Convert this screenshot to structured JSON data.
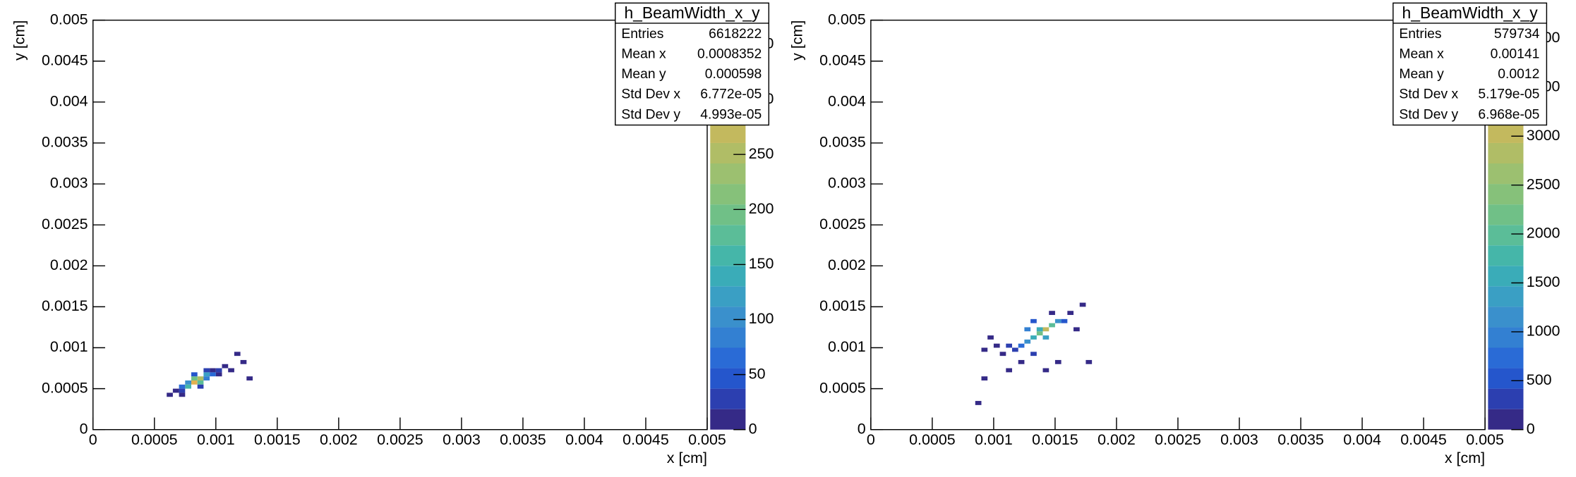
{
  "chart_data": [
    {
      "type": "heatmap",
      "xlabel": "x [cm]",
      "ylabel": "y [cm]",
      "xlim": [
        0,
        0.005
      ],
      "ylim": [
        0,
        0.005
      ],
      "zlim": [
        0,
        372
      ],
      "xbin": 5e-05,
      "ybin": 5e-05,
      "xticks": [
        0,
        0.0005,
        0.001,
        0.0015,
        0.002,
        0.0025,
        0.003,
        0.0035,
        0.004,
        0.0045,
        0.005
      ],
      "yticks": [
        0,
        0.0005,
        0.001,
        0.0015,
        0.002,
        0.0025,
        0.003,
        0.0035,
        0.004,
        0.0045,
        0.005
      ],
      "zticks": [
        0,
        50,
        100,
        150,
        200,
        250,
        300,
        350
      ],
      "palette": [
        "#352a87",
        "#2c3fb0",
        "#2556cc",
        "#2a6bd6",
        "#3380d2",
        "#3a90cc",
        "#3a9fc4",
        "#3aacb8",
        "#45b6a9",
        "#5bbd98",
        "#70c087",
        "#86c17a",
        "#9cc070",
        "#b0bd66",
        "#c3b95e",
        "#d4b557",
        "#e2b250",
        "#eeb74a",
        "#f5c93e",
        "#f9e02b"
      ],
      "cells": {
        "x": [
          0.0008,
          0.00085,
          0.00075,
          0.0009,
          0.0008,
          0.00085,
          0.0007,
          0.00095,
          0.0009,
          0.00075,
          0.0007,
          0.001,
          0.00065,
          0.001,
          0.00095,
          0.0006,
          0.00115,
          0.0012,
          0.00125,
          0.00105,
          0.0011,
          0.0007,
          0.00085,
          0.0008,
          0.0009
        ],
        "y": [
          0.00055,
          0.0006,
          0.0005,
          0.00065,
          0.0006,
          0.00055,
          0.0005,
          0.00065,
          0.0006,
          0.00055,
          0.00045,
          0.0007,
          0.00045,
          0.00065,
          0.0007,
          0.0004,
          0.0009,
          0.0008,
          0.0006,
          0.00075,
          0.0007,
          0.0004,
          0.0005,
          0.00065,
          0.0007
        ],
        "z": [
          300,
          250,
          150,
          120,
          200,
          180,
          60,
          60,
          90,
          110,
          20,
          20,
          5,
          10,
          15,
          1,
          1,
          1,
          1,
          1,
          1,
          2,
          30,
          40,
          25
        ]
      },
      "stats": {
        "title": "h_BeamWidth_x_y",
        "rows": [
          [
            "Entries",
            "6618222"
          ],
          [
            "Mean x",
            "0.0008352"
          ],
          [
            "Mean y",
            "0.000598"
          ],
          [
            "Std Dev x",
            "6.772e-05"
          ],
          [
            "Std Dev y",
            "4.993e-05"
          ]
        ]
      }
    },
    {
      "type": "heatmap",
      "xlabel": "x [cm]",
      "ylabel": "y [cm]",
      "xlim": [
        0,
        0.005
      ],
      "ylim": [
        0,
        0.005
      ],
      "zlim": [
        0,
        4186
      ],
      "xbin": 5e-05,
      "ybin": 5e-05,
      "xticks": [
        0,
        0.0005,
        0.001,
        0.0015,
        0.002,
        0.0025,
        0.003,
        0.0035,
        0.004,
        0.0045,
        0.005
      ],
      "yticks": [
        0,
        0.0005,
        0.001,
        0.0015,
        0.002,
        0.0025,
        0.003,
        0.0035,
        0.004,
        0.0045,
        0.005
      ],
      "zticks": [
        0,
        500,
        1000,
        1500,
        2000,
        2500,
        3000,
        3500,
        4000
      ],
      "palette": [
        "#352a87",
        "#2c3fb0",
        "#2556cc",
        "#2a6bd6",
        "#3380d2",
        "#3a90cc",
        "#3a9fc4",
        "#3aacb8",
        "#45b6a9",
        "#5bbd98",
        "#70c087",
        "#86c17a",
        "#9cc070",
        "#b0bd66",
        "#c3b95e",
        "#d4b557",
        "#e2b250",
        "#eeb74a",
        "#f5c93e",
        "#f9e02b"
      ],
      "cells": {
        "x": [
          0.0014,
          0.00135,
          0.00145,
          0.0013,
          0.0015,
          0.00125,
          0.0014,
          0.00135,
          0.0012,
          0.00155,
          0.0011,
          0.00115,
          0.0016,
          0.0013,
          0.00105,
          0.001,
          0.0009,
          0.00095,
          0.0017,
          0.0012,
          0.00165,
          0.0011,
          0.0009,
          0.00085,
          0.0015,
          0.00145,
          0.00125,
          0.0013,
          0.00175,
          0.0014
        ],
        "y": [
          0.0012,
          0.00115,
          0.00125,
          0.0011,
          0.0013,
          0.00105,
          0.0011,
          0.0012,
          0.001,
          0.0013,
          0.001,
          0.00095,
          0.0014,
          0.0013,
          0.0009,
          0.001,
          0.00095,
          0.0011,
          0.0015,
          0.0008,
          0.0012,
          0.0007,
          0.0006,
          0.0003,
          0.0008,
          0.0014,
          0.0012,
          0.0009,
          0.0008,
          0.0007
        ],
        "z": [
          3000,
          2200,
          2000,
          1500,
          1200,
          1100,
          1300,
          1600,
          700,
          600,
          300,
          400,
          200,
          500,
          150,
          100,
          20,
          30,
          10,
          200,
          60,
          40,
          10,
          5,
          10,
          100,
          900,
          300,
          5,
          20
        ]
      },
      "stats": {
        "title": "h_BeamWidth_x_y",
        "rows": [
          [
            "Entries",
            "579734"
          ],
          [
            "Mean x",
            "0.00141"
          ],
          [
            "Mean y",
            "0.0012"
          ],
          [
            "Std Dev x",
            "5.179e-05"
          ],
          [
            "Std Dev y",
            "6.968e-05"
          ]
        ]
      }
    }
  ]
}
